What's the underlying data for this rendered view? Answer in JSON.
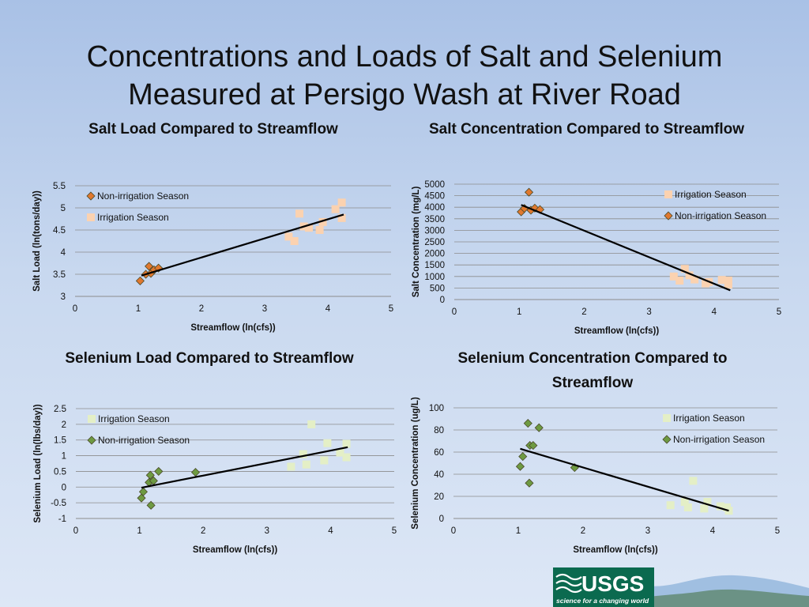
{
  "page": {
    "title": "Concentrations and Loads of Salt and Selenium Measured at Persigo Wash at River Road"
  },
  "logo": {
    "name": "USGS",
    "tagline": "science for a changing world"
  },
  "chart_data": [
    {
      "id": "salt-load",
      "type": "scatter",
      "title": "Salt Load Compared to Streamflow",
      "xlabel": "Streamflow (ln(cfs))",
      "ylabel": "Salt Load (ln(tons/day))",
      "xlim": [
        0,
        5
      ],
      "ylim": [
        3,
        5.5
      ],
      "xticks": [
        "0",
        "1",
        "2",
        "3",
        "4",
        "5"
      ],
      "yticks": [
        "3",
        "3.5",
        "4",
        "4.5",
        "5",
        "5.5"
      ],
      "grid": true,
      "legend_position": "top-left",
      "series": [
        {
          "name": "Non-irrigation Season",
          "marker": "diamond",
          "color": "#e0782e",
          "points": [
            [
              1.03,
              3.35
            ],
            [
              1.12,
              3.5
            ],
            [
              1.17,
              3.68
            ],
            [
              1.2,
              3.52
            ],
            [
              1.25,
              3.6
            ],
            [
              1.32,
              3.64
            ]
          ]
        },
        {
          "name": "Irrigation Season",
          "marker": "square",
          "color": "#fbd2b0",
          "points": [
            [
              3.38,
              4.35
            ],
            [
              3.47,
              4.25
            ],
            [
              3.55,
              4.87
            ],
            [
              3.62,
              4.58
            ],
            [
              3.7,
              4.55
            ],
            [
              3.87,
              4.5
            ],
            [
              3.92,
              4.68
            ],
            [
              4.12,
              4.97
            ],
            [
              4.22,
              5.12
            ],
            [
              4.22,
              4.77
            ]
          ]
        }
      ],
      "trendline": [
        [
          1.05,
          3.47
        ],
        [
          4.25,
          4.85
        ]
      ]
    },
    {
      "id": "salt-conc",
      "type": "scatter",
      "title": "Salt Concentration Compared to Streamflow",
      "xlabel": "Streamflow (ln(cfs))",
      "ylabel": "Salt Concentration (mg/L)",
      "xlim": [
        0,
        5
      ],
      "ylim": [
        0,
        5000
      ],
      "xticks": [
        "0",
        "1",
        "2",
        "3",
        "4",
        "5"
      ],
      "yticks": [
        "0",
        "500",
        "1000",
        "1500",
        "2000",
        "2500",
        "3000",
        "3500",
        "4000",
        "4500",
        "5000"
      ],
      "grid": true,
      "legend_position": "top-right",
      "series": [
        {
          "name": "Irrigation Season",
          "marker": "square",
          "color": "#fbd2b0",
          "points": [
            [
              3.38,
              1000
            ],
            [
              3.47,
              820
            ],
            [
              3.55,
              1330
            ],
            [
              3.62,
              1050
            ],
            [
              3.7,
              870
            ],
            [
              3.87,
              700
            ],
            [
              3.92,
              760
            ],
            [
              4.12,
              850
            ],
            [
              4.22,
              820
            ],
            [
              4.22,
              650
            ]
          ]
        },
        {
          "name": "Non-irrigation Season",
          "marker": "diamond",
          "color": "#e0782e",
          "points": [
            [
              1.03,
              3800
            ],
            [
              1.08,
              3950
            ],
            [
              1.15,
              4650
            ],
            [
              1.18,
              3870
            ],
            [
              1.24,
              3960
            ],
            [
              1.32,
              3900
            ]
          ]
        }
      ],
      "trendline": [
        [
          1.03,
          4100
        ],
        [
          4.25,
          400
        ]
      ]
    },
    {
      "id": "selenium-load",
      "type": "scatter",
      "title": "Selenium Load Compared to Streamflow",
      "xlabel": "Streamflow (ln(cfs))",
      "ylabel": "Selenium Load (ln(lbs/day))",
      "xlim": [
        0,
        5
      ],
      "ylim": [
        -1,
        2.5
      ],
      "xticks": [
        "0",
        "1",
        "2",
        "3",
        "4",
        "5"
      ],
      "yticks": [
        "-1",
        "-0.5",
        "0",
        "0.5",
        "1",
        "1.5",
        "2",
        "2.5"
      ],
      "grid": true,
      "legend_position": "top-left",
      "series": [
        {
          "name": "Irrigation Season",
          "marker": "square",
          "color": "#e4efc6",
          "points": [
            [
              3.38,
              0.65
            ],
            [
              3.57,
              1.05
            ],
            [
              3.62,
              0.72
            ],
            [
              3.7,
              2.0
            ],
            [
              3.9,
              0.85
            ],
            [
              3.95,
              1.4
            ],
            [
              4.15,
              1.1
            ],
            [
              4.25,
              0.95
            ],
            [
              4.25,
              1.38
            ]
          ]
        },
        {
          "name": "Non-irrigation Season",
          "marker": "diamond",
          "color": "#6e9a42",
          "points": [
            [
              1.03,
              -0.35
            ],
            [
              1.06,
              -0.15
            ],
            [
              1.15,
              0.15
            ],
            [
              1.17,
              0.38
            ],
            [
              1.18,
              -0.58
            ],
            [
              1.22,
              0.2
            ],
            [
              1.3,
              0.5
            ],
            [
              1.88,
              0.47
            ]
          ]
        }
      ],
      "trendline": [
        [
          1.03,
          -0.02
        ],
        [
          4.27,
          1.27
        ]
      ]
    },
    {
      "id": "selenium-conc",
      "type": "scatter",
      "title": "Selenium Concentration Compared to Streamflow",
      "xlabel": "Streamflow (ln(cfs))",
      "ylabel": "Selenium Concentration (ug/L)",
      "xlim": [
        0,
        5
      ],
      "ylim": [
        0,
        100
      ],
      "xticks": [
        "0",
        "1",
        "2",
        "3",
        "4",
        "5"
      ],
      "yticks": [
        "0",
        "20",
        "40",
        "60",
        "80",
        "100"
      ],
      "grid": true,
      "legend_position": "top-right",
      "series": [
        {
          "name": "Irrigation Season",
          "marker": "square",
          "color": "#e4efc6",
          "points": [
            [
              3.35,
              12
            ],
            [
              3.57,
              15
            ],
            [
              3.62,
              10
            ],
            [
              3.7,
              34
            ],
            [
              3.87,
              9
            ],
            [
              3.92,
              15
            ],
            [
              4.12,
              11
            ],
            [
              4.22,
              10
            ],
            [
              4.25,
              7
            ]
          ]
        },
        {
          "name": "Non-irrigation Season",
          "marker": "diamond",
          "color": "#6e9a42",
          "points": [
            [
              1.03,
              47
            ],
            [
              1.07,
              56
            ],
            [
              1.15,
              86
            ],
            [
              1.17,
              32
            ],
            [
              1.18,
              66
            ],
            [
              1.23,
              66
            ],
            [
              1.32,
              82
            ],
            [
              1.87,
              46
            ]
          ]
        }
      ],
      "trendline": [
        [
          1.03,
          63
        ],
        [
          4.25,
          7
        ]
      ]
    }
  ]
}
